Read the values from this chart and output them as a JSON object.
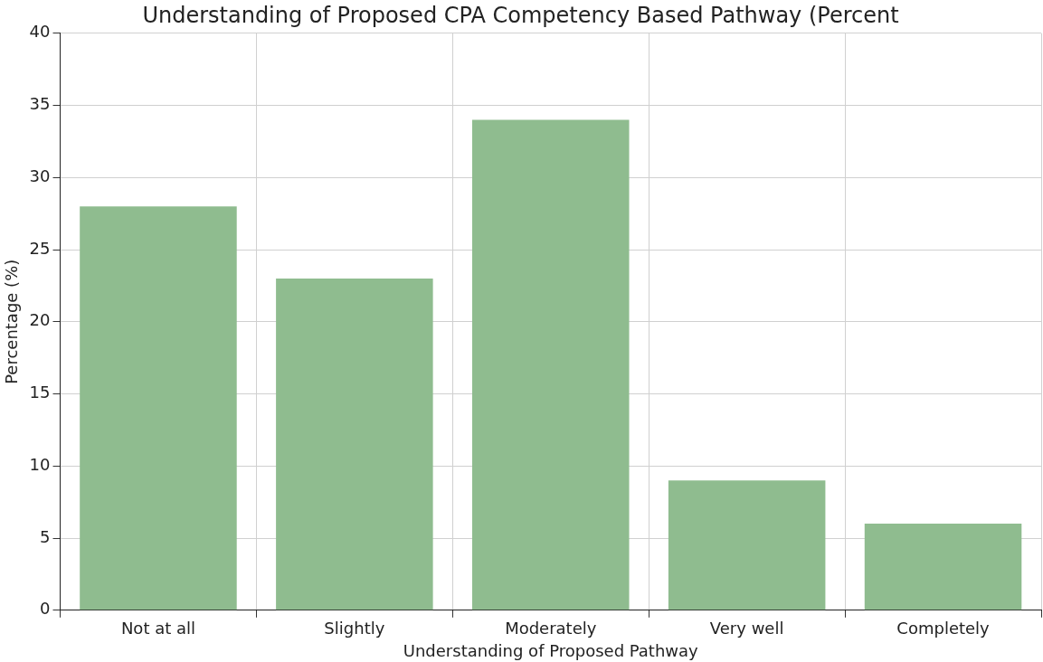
{
  "chart_data": {
    "type": "bar",
    "title": "Understanding of Proposed CPA Competency Based Pathway (Percent",
    "xlabel": "Understanding of Proposed Pathway",
    "ylabel": "Percentage (%)",
    "categories": [
      "Not at all",
      "Slightly",
      "Moderately",
      "Very well",
      "Completely"
    ],
    "values": [
      28,
      23,
      34,
      9,
      6
    ],
    "color": "#8fbc8f",
    "ylim": [
      0,
      40
    ],
    "yticks": [
      0,
      5,
      10,
      15,
      20,
      25,
      30,
      35,
      40
    ],
    "grid": true
  }
}
